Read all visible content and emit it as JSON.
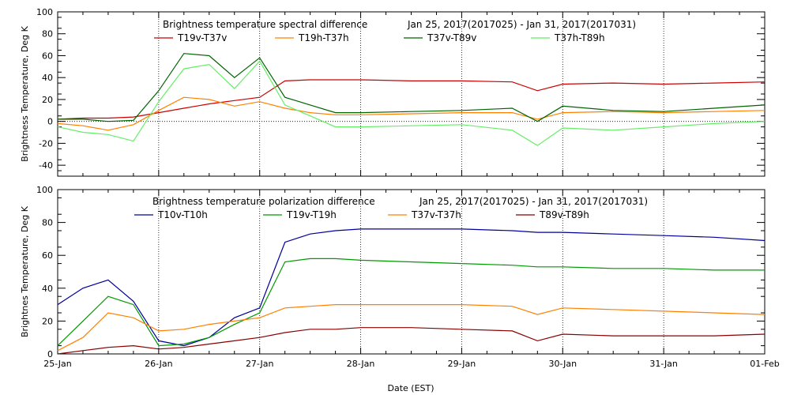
{
  "chart_data": [
    {
      "type": "line",
      "title": "Brightness temperature spectral difference",
      "date_range": "Jan 25, 2017(2017025) - Jan 31, 2017(2017031)",
      "ylabel": "Brightness Temperature, Deg K",
      "ylim": [
        -50,
        100
      ],
      "yticks": [
        "-40",
        "-20",
        "0",
        "20",
        "40",
        "60",
        "80",
        "100"
      ],
      "xlim": [
        "2017-01-25",
        "2017-02-01"
      ],
      "grid": "dotted vertical lines at each day; dotted horizontal line at 0",
      "x": [
        "2017-01-25 00:00",
        "2017-01-25 06:00",
        "2017-01-25 12:00",
        "2017-01-25 18:00",
        "2017-01-26 00:00",
        "2017-01-26 06:00",
        "2017-01-26 12:00",
        "2017-01-26 18:00",
        "2017-01-27 00:00",
        "2017-01-27 06:00",
        "2017-01-27 12:00",
        "2017-01-27 18:00",
        "2017-01-28 00:00",
        "2017-01-28 12:00",
        "2017-01-29 00:00",
        "2017-01-29 12:00",
        "2017-01-29 18:00",
        "2017-01-30 00:00",
        "2017-01-30 12:00",
        "2017-01-31 00:00",
        "2017-01-31 12:00",
        "2017-02-01 00:00"
      ],
      "series": [
        {
          "name": "T19v-T37v",
          "color": "#cc0000",
          "values": [
            2,
            3,
            3,
            4,
            8,
            12,
            16,
            19,
            22,
            37,
            38,
            38,
            38,
            37,
            37,
            36,
            28,
            34,
            35,
            34,
            35,
            36
          ]
        },
        {
          "name": "T19h-T37h",
          "color": "#ff8000",
          "values": [
            -2,
            -4,
            -8,
            -3,
            10,
            22,
            20,
            14,
            18,
            12,
            8,
            6,
            6,
            7,
            8,
            8,
            2,
            8,
            9,
            8,
            9,
            10
          ]
        },
        {
          "name": "T37v-T89v",
          "color": "#006400",
          "values": [
            2,
            2,
            0,
            1,
            28,
            62,
            60,
            40,
            58,
            22,
            15,
            8,
            8,
            9,
            10,
            12,
            0,
            14,
            10,
            9,
            12,
            15
          ]
        },
        {
          "name": "T37h-T89h",
          "color": "#66ee66",
          "values": [
            -5,
            -10,
            -12,
            -18,
            18,
            48,
            52,
            30,
            55,
            15,
            5,
            -5,
            -5,
            -4,
            -3,
            -8,
            -22,
            -6,
            -8,
            -5,
            -2,
            0
          ]
        }
      ]
    },
    {
      "type": "line",
      "title": "Brightness temperature polarization difference",
      "date_range": "Jan 25, 2017(2017025) - Jan 31, 2017(2017031)",
      "ylabel": "Brightnes Temperature, Deg K",
      "xlabel": "Date (EST)",
      "ylim": [
        0,
        100
      ],
      "yticks": [
        "0",
        "20",
        "40",
        "60",
        "80",
        "100"
      ],
      "xticks": [
        "25-Jan",
        "26-Jan",
        "27-Jan",
        "28-Jan",
        "29-Jan",
        "30-Jan",
        "31-Jan",
        "01-Feb"
      ],
      "xlim": [
        "2017-01-25",
        "2017-02-01"
      ],
      "grid": "dotted vertical lines at each day",
      "x": [
        "2017-01-25 00:00",
        "2017-01-25 06:00",
        "2017-01-25 12:00",
        "2017-01-25 18:00",
        "2017-01-26 00:00",
        "2017-01-26 06:00",
        "2017-01-26 12:00",
        "2017-01-26 18:00",
        "2017-01-27 00:00",
        "2017-01-27 06:00",
        "2017-01-27 12:00",
        "2017-01-27 18:00",
        "2017-01-28 00:00",
        "2017-01-28 12:00",
        "2017-01-29 00:00",
        "2017-01-29 12:00",
        "2017-01-29 18:00",
        "2017-01-30 00:00",
        "2017-01-30 12:00",
        "2017-01-31 00:00",
        "2017-01-31 12:00",
        "2017-02-01 00:00"
      ],
      "series": [
        {
          "name": "T10v-T10h",
          "color": "#000099",
          "values": [
            30,
            40,
            45,
            32,
            8,
            5,
            10,
            22,
            28,
            68,
            73,
            75,
            76,
            76,
            76,
            75,
            74,
            74,
            73,
            72,
            71,
            69
          ]
        },
        {
          "name": "T19v-T19h",
          "color": "#009900",
          "values": [
            5,
            20,
            35,
            30,
            5,
            6,
            10,
            18,
            25,
            56,
            58,
            58,
            57,
            56,
            55,
            54,
            53,
            53,
            52,
            52,
            51,
            51
          ]
        },
        {
          "name": "T37v-T37h",
          "color": "#ff8000",
          "values": [
            2,
            10,
            25,
            22,
            14,
            15,
            18,
            20,
            22,
            28,
            29,
            30,
            30,
            30,
            30,
            29,
            24,
            28,
            27,
            26,
            25,
            24
          ]
        },
        {
          "name": "T89v-T89h",
          "color": "#880000",
          "values": [
            0,
            2,
            4,
            5,
            3,
            4,
            6,
            8,
            10,
            13,
            15,
            15,
            16,
            16,
            15,
            14,
            8,
            12,
            11,
            11,
            11,
            12
          ]
        }
      ]
    }
  ]
}
